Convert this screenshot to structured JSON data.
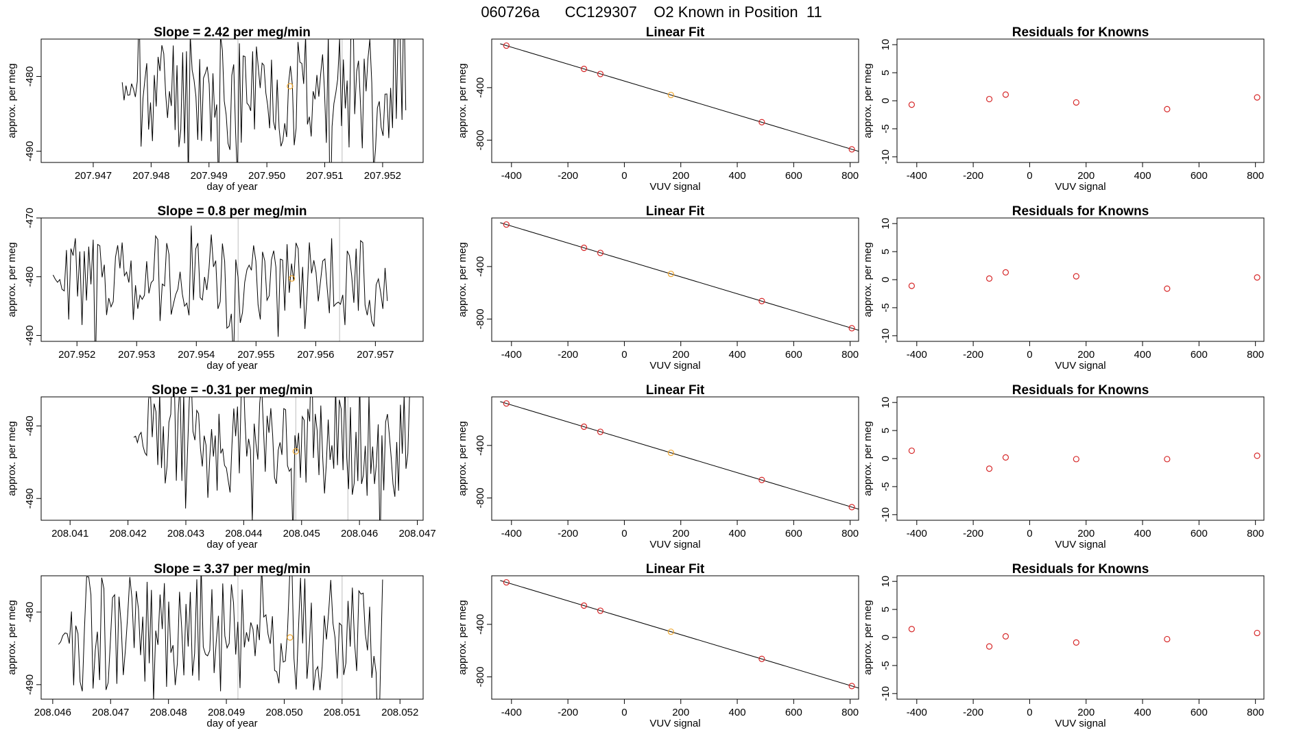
{
  "supertitle": "060726a      CC129307    O2 Known in Position  11",
  "colors": {
    "line": "#000000",
    "known": "#d62728",
    "position": "#f0a830",
    "vline": "#bdbdbd"
  },
  "chart_data": [
    {
      "row": 1,
      "timeseries": {
        "type": "line",
        "title": "Slope =  2.42  per meg/min",
        "xlabel": "day of year",
        "ylabel": "approx. per meg",
        "xlim": [
          207.9461,
          207.9527
        ],
        "ylim": [
          -491.5,
          -475
        ],
        "xticks": [
          "207.947",
          "207.948",
          "207.949",
          "207.950",
          "207.951",
          "207.952"
        ],
        "xtick_values": [
          207.947,
          207.948,
          207.949,
          207.95,
          207.951,
          207.952
        ],
        "yticks": [
          "-490",
          "-480"
        ],
        "ytick_values": [
          -490,
          -480
        ],
        "x_start": 207.9475,
        "x_end": 207.9524,
        "y_mid": -482,
        "seed": 11,
        "vlines": [
          207.9495,
          207.9513
        ],
        "point": {
          "x": 207.9504,
          "y": -481.3
        }
      },
      "fit": {
        "type": "scatter",
        "title": "Linear Fit",
        "xlabel": "VUV signal",
        "ylabel": "approx. per meg",
        "xlim": [
          -470,
          830
        ],
        "ylim": [
          -970,
          -30
        ],
        "xticks": [
          "-400",
          "-200",
          "0",
          "200",
          "400",
          "600",
          "800"
        ],
        "xtick_values": [
          -400,
          -200,
          0,
          200,
          400,
          600,
          800
        ],
        "yticks": [
          "-800",
          "-400"
        ],
        "ytick_values": [
          -800,
          -400
        ],
        "points": [
          [
            -418,
            -80
          ],
          [
            -143,
            -257
          ],
          [
            -85,
            -296
          ],
          [
            165,
            -456
          ],
          [
            487,
            -663
          ],
          [
            806,
            -870
          ]
        ],
        "point_colors": [
          "known",
          "known",
          "known",
          "position",
          "known",
          "known"
        ],
        "line": [
          [
            -440,
            -66
          ],
          [
            830,
            -885
          ]
        ]
      },
      "residuals": {
        "type": "scatter",
        "title": "Residuals for Knowns",
        "xlabel": "VUV signal",
        "ylabel": "approx. per meg",
        "xlim": [
          -470,
          830
        ],
        "ylim": [
          -11,
          11
        ],
        "xticks": [
          "-400",
          "-200",
          "0",
          "200",
          "400",
          "600",
          "800"
        ],
        "xtick_values": [
          -400,
          -200,
          0,
          200,
          400,
          600,
          800
        ],
        "yticks": [
          "-10",
          "-5",
          "0",
          "5",
          "10"
        ],
        "ytick_values": [
          -10,
          -5,
          0,
          5,
          10
        ],
        "points": [
          [
            -418,
            -0.7
          ],
          [
            -143,
            0.3
          ],
          [
            -85,
            1.1
          ],
          [
            165,
            -0.3
          ],
          [
            487,
            -1.5
          ],
          [
            806,
            0.6
          ]
        ]
      }
    },
    {
      "row": 2,
      "timeseries": {
        "type": "line",
        "title": "Slope =  0.8  per meg/min",
        "xlabel": "day of year",
        "ylabel": "approx. per meg",
        "xlim": [
          207.9514,
          207.9578
        ],
        "ylim": [
          -491,
          -470
        ],
        "xticks": [
          "207.952",
          "207.953",
          "207.954",
          "207.955",
          "207.956",
          "207.957"
        ],
        "xtick_values": [
          207.952,
          207.953,
          207.954,
          207.955,
          207.956,
          207.957
        ],
        "yticks": [
          "-490",
          "-480",
          "-470"
        ],
        "ytick_values": [
          -490,
          -480,
          -470
        ],
        "x_start": 207.9516,
        "x_end": 207.9572,
        "y_mid": -481,
        "seed": 23,
        "vlines": [
          207.9547,
          207.9564
        ],
        "point": {
          "x": 207.9556,
          "y": -480.3
        }
      },
      "fit": {
        "type": "scatter",
        "title": "Linear Fit",
        "xlabel": "VUV signal",
        "ylabel": "approx. per meg",
        "xlim": [
          -470,
          830
        ],
        "ylim": [
          -970,
          -30
        ],
        "xticks": [
          "-400",
          "-200",
          "0",
          "200",
          "400",
          "600",
          "800"
        ],
        "xtick_values": [
          -400,
          -200,
          0,
          200,
          400,
          600,
          800
        ],
        "yticks": [
          "-800",
          "-400"
        ],
        "ytick_values": [
          -800,
          -400
        ],
        "points": [
          [
            -418,
            -80
          ],
          [
            -143,
            -257
          ],
          [
            -85,
            -296
          ],
          [
            165,
            -456
          ],
          [
            487,
            -663
          ],
          [
            806,
            -870
          ]
        ],
        "point_colors": [
          "known",
          "known",
          "known",
          "position",
          "known",
          "known"
        ],
        "line": [
          [
            -440,
            -66
          ],
          [
            830,
            -885
          ]
        ]
      },
      "residuals": {
        "type": "scatter",
        "title": "Residuals for Knowns",
        "xlabel": "VUV signal",
        "ylabel": "approx. per meg",
        "xlim": [
          -470,
          830
        ],
        "ylim": [
          -11,
          11
        ],
        "xticks": [
          "-400",
          "-200",
          "0",
          "200",
          "400",
          "600",
          "800"
        ],
        "xtick_values": [
          -400,
          -200,
          0,
          200,
          400,
          600,
          800
        ],
        "yticks": [
          "-10",
          "-5",
          "0",
          "5",
          "10"
        ],
        "ytick_values": [
          -10,
          -5,
          0,
          5,
          10
        ],
        "points": [
          [
            -418,
            -1.1
          ],
          [
            -143,
            0.2
          ],
          [
            -85,
            1.3
          ],
          [
            165,
            0.6
          ],
          [
            487,
            -1.6
          ],
          [
            806,
            0.4
          ]
        ]
      }
    },
    {
      "row": 3,
      "timeseries": {
        "type": "line",
        "title": "Slope =  -0.31  per meg/min",
        "xlabel": "day of year",
        "ylabel": "approx. per meg",
        "xlim": [
          208.0405,
          208.0471
        ],
        "ylim": [
          -493,
          -476
        ],
        "xticks": [
          "208.041",
          "208.042",
          "208.043",
          "208.044",
          "208.045",
          "208.046",
          "208.047"
        ],
        "xtick_values": [
          208.041,
          208.042,
          208.043,
          208.044,
          208.045,
          208.046,
          208.047
        ],
        "yticks": [
          "-490",
          "-480"
        ],
        "ytick_values": [
          -490,
          -480
        ],
        "x_start": 208.0421,
        "x_end": 208.0469,
        "y_mid": -482,
        "seed": 37,
        "vlines": [
          208.0449,
          208.0458
        ],
        "point": {
          "x": 208.0449,
          "y": -483.5
        }
      },
      "fit": {
        "type": "scatter",
        "title": "Linear Fit",
        "xlabel": "VUV signal",
        "ylabel": "approx. per meg",
        "xlim": [
          -470,
          830
        ],
        "ylim": [
          -970,
          -30
        ],
        "xticks": [
          "-400",
          "-200",
          "0",
          "200",
          "400",
          "600",
          "800"
        ],
        "xtick_values": [
          -400,
          -200,
          0,
          200,
          400,
          600,
          800
        ],
        "yticks": [
          "-800",
          "-400"
        ],
        "ytick_values": [
          -800,
          -400
        ],
        "points": [
          [
            -418,
            -80
          ],
          [
            -143,
            -257
          ],
          [
            -85,
            -296
          ],
          [
            165,
            -456
          ],
          [
            487,
            -663
          ],
          [
            806,
            -870
          ]
        ],
        "point_colors": [
          "known",
          "known",
          "known",
          "position",
          "known",
          "known"
        ],
        "line": [
          [
            -440,
            -66
          ],
          [
            830,
            -885
          ]
        ]
      },
      "residuals": {
        "type": "scatter",
        "title": "Residuals for Knowns",
        "xlabel": "VUV signal",
        "ylabel": "approx. per meg",
        "xlim": [
          -470,
          830
        ],
        "ylim": [
          -11,
          11
        ],
        "xticks": [
          "-400",
          "-200",
          "0",
          "200",
          "400",
          "600",
          "800"
        ],
        "xtick_values": [
          -400,
          -200,
          0,
          200,
          400,
          600,
          800
        ],
        "yticks": [
          "-10",
          "-5",
          "0",
          "5",
          "10"
        ],
        "ytick_values": [
          -10,
          -5,
          0,
          5,
          10
        ],
        "points": [
          [
            -418,
            1.4
          ],
          [
            -143,
            -1.8
          ],
          [
            -85,
            0.2
          ],
          [
            165,
            -0.1
          ],
          [
            487,
            -0.1
          ],
          [
            806,
            0.5
          ]
        ]
      }
    },
    {
      "row": 4,
      "timeseries": {
        "type": "line",
        "title": "Slope =  3.37  per meg/min",
        "xlabel": "day of year",
        "ylabel": "approx. per meg",
        "xlim": [
          208.0458,
          208.0524
        ],
        "ylim": [
          -492,
          -475
        ],
        "xticks": [
          "208.046",
          "208.047",
          "208.048",
          "208.049",
          "208.050",
          "208.051",
          "208.052"
        ],
        "xtick_values": [
          208.046,
          208.047,
          208.048,
          208.049,
          208.05,
          208.051,
          208.052
        ],
        "yticks": [
          "-490",
          "-480"
        ],
        "ytick_values": [
          -490,
          -480
        ],
        "x_start": 208.0461,
        "x_end": 208.0517,
        "y_mid": -483,
        "seed": 53,
        "vlines": [
          208.0492,
          208.051
        ],
        "point": {
          "x": 208.0501,
          "y": -483.5
        }
      },
      "fit": {
        "type": "scatter",
        "title": "Linear Fit",
        "xlabel": "VUV signal",
        "ylabel": "approx. per meg",
        "xlim": [
          -470,
          830
        ],
        "ylim": [
          -970,
          -30
        ],
        "xticks": [
          "-400",
          "-200",
          "0",
          "200",
          "400",
          "600",
          "800"
        ],
        "xtick_values": [
          -400,
          -200,
          0,
          200,
          400,
          600,
          800
        ],
        "yticks": [
          "-800",
          "-400"
        ],
        "ytick_values": [
          -800,
          -400
        ],
        "points": [
          [
            -418,
            -80
          ],
          [
            -143,
            -257
          ],
          [
            -85,
            -296
          ],
          [
            165,
            -456
          ],
          [
            487,
            -663
          ],
          [
            806,
            -870
          ]
        ],
        "point_colors": [
          "known",
          "known",
          "known",
          "position",
          "known",
          "known"
        ],
        "line": [
          [
            -440,
            -66
          ],
          [
            830,
            -885
          ]
        ]
      },
      "residuals": {
        "type": "scatter",
        "title": "Residuals for Knowns",
        "xlabel": "VUV signal",
        "ylabel": "approx. per meg",
        "xlim": [
          -470,
          830
        ],
        "ylim": [
          -11,
          11
        ],
        "xticks": [
          "-400",
          "-200",
          "0",
          "200",
          "400",
          "600",
          "800"
        ],
        "xtick_values": [
          -400,
          -200,
          0,
          200,
          400,
          600,
          800
        ],
        "yticks": [
          "-10",
          "-5",
          "0",
          "5",
          "10"
        ],
        "ytick_values": [
          -10,
          -5,
          0,
          5,
          10
        ],
        "points": [
          [
            -418,
            1.5
          ],
          [
            -143,
            -1.6
          ],
          [
            -85,
            0.2
          ],
          [
            165,
            -0.9
          ],
          [
            487,
            -0.3
          ],
          [
            806,
            0.8
          ]
        ]
      }
    }
  ]
}
